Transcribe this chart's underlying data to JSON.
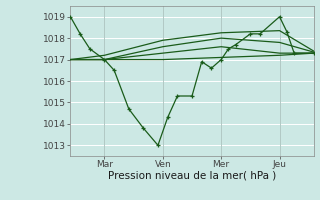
{
  "background_color": "#cce8e4",
  "grid_color": "#ffffff",
  "line_color": "#1a5c1a",
  "title": "Pression niveau de la mer( hPa )",
  "ylabel_ticks": [
    1013,
    1014,
    1015,
    1016,
    1017,
    1018,
    1019
  ],
  "ylim": [
    1012.5,
    1019.5
  ],
  "xlim": [
    0,
    100
  ],
  "xtick_positions": [
    14,
    38,
    62,
    86
  ],
  "xtick_labels": [
    "Mar",
    "Ven",
    "Mer",
    "Jeu"
  ],
  "vline_positions": [
    14,
    38,
    62,
    86
  ],
  "detailed_x": [
    0,
    4,
    8,
    14,
    18,
    24,
    30,
    36,
    40,
    44,
    50,
    54,
    58,
    62,
    65,
    68,
    74,
    78,
    86,
    89,
    92,
    100
  ],
  "detailed_y": [
    1019.0,
    1018.2,
    1017.5,
    1017.0,
    1016.5,
    1014.7,
    1013.8,
    1013.0,
    1014.3,
    1015.3,
    1015.3,
    1016.9,
    1016.6,
    1017.0,
    1017.5,
    1017.7,
    1018.2,
    1018.2,
    1019.0,
    1018.3,
    1017.3,
    1017.3
  ],
  "band1_x": [
    0,
    14,
    38,
    62,
    86,
    100
  ],
  "band1_y": [
    1017.0,
    1017.0,
    1017.0,
    1017.1,
    1017.2,
    1017.3
  ],
  "band2_x": [
    0,
    14,
    38,
    62,
    86,
    100
  ],
  "band2_y": [
    1017.0,
    1017.0,
    1017.3,
    1017.6,
    1017.3,
    1017.3
  ],
  "band3_x": [
    0,
    14,
    38,
    62,
    86,
    100
  ],
  "band3_y": [
    1017.0,
    1017.0,
    1017.6,
    1018.0,
    1017.8,
    1017.35
  ],
  "band4_x": [
    0,
    14,
    38,
    62,
    86,
    100
  ],
  "band4_y": [
    1017.0,
    1017.2,
    1017.9,
    1018.25,
    1018.35,
    1017.4
  ]
}
